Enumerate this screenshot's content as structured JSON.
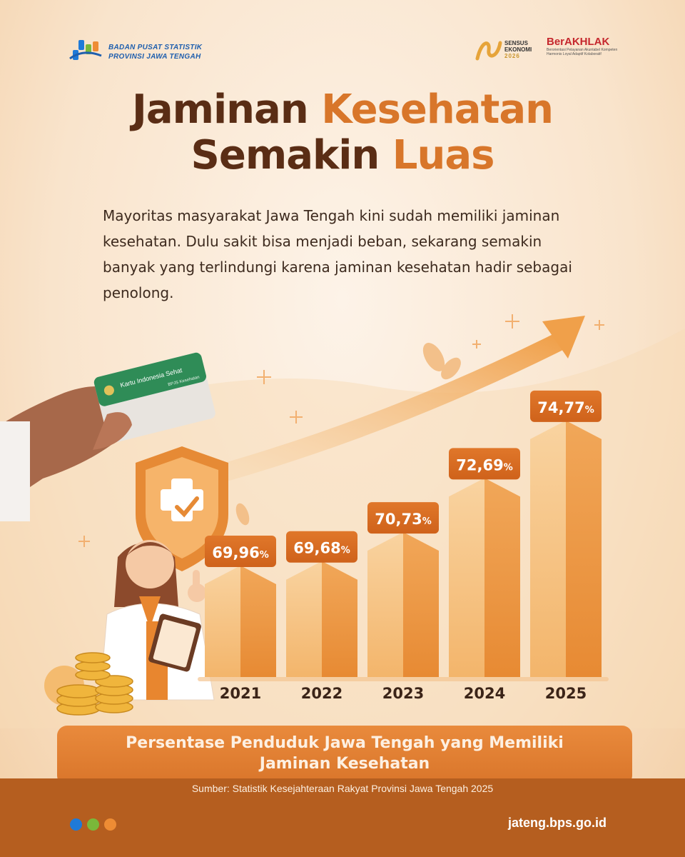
{
  "header": {
    "org_line1": "BADAN PUSAT STATISTIK",
    "org_line2": "PROVINSI JAWA TENGAH",
    "sensus_line1": "SENSUS",
    "sensus_line2": "EKONOMI",
    "sensus_year": "2026",
    "berakhlak": "BerAKHLAK",
    "berakhlak_tag": "Berorientasi Pelayanan Akuntabel Kompeten Harmonis Loyal Adaptif Kolaboratif"
  },
  "title": {
    "line1_a": "Jaminan ",
    "line1_b": "Kesehatan",
    "line2_a": "Semakin ",
    "line2_b": "Luas"
  },
  "intro": "Mayoritas masyarakat Jawa Tengah kini sudah memiliki jaminan kesehatan. Dulu sakit bisa menjadi beban, sekarang semakin banyak yang terlindungi karena jaminan kesehatan hadir sebagai penolong.",
  "card": {
    "label": "Kartu Indonesia Sehat",
    "sub": "BPJS Kesehatan"
  },
  "chart_data": {
    "type": "bar",
    "categories": [
      "2021",
      "2022",
      "2023",
      "2024",
      "2025"
    ],
    "values": [
      69.96,
      69.68,
      70.73,
      72.69,
      74.77
    ],
    "value_labels": [
      "69,96",
      "69,68",
      "70,73",
      "72,69",
      "74,77"
    ],
    "unit": "%",
    "title": "Persentase Penduduk Jawa Tengah yang Memiliki Jaminan Kesehatan",
    "xlabel": "",
    "ylabel": "",
    "grid": false,
    "legend": "none"
  },
  "footer": {
    "caption_line1": "Persentase Penduduk Jawa Tengah yang Memiliki",
    "caption_line2": "Jaminan Kesehatan",
    "source": "Sumber: Statistik Kesejahteraan Rakyat Provinsi Jawa Tengah 2025",
    "site": "jateng.bps.go.id"
  },
  "colors": {
    "brown": "#5a2d15",
    "accent": "#d8762a",
    "bar_light": "#f7c27e",
    "bar_dark": "#e07a22",
    "bar_label": "#d9691e",
    "dot_blue": "#1f7ad8",
    "dot_green": "#7ab83a",
    "dot_orange": "#ee8c34"
  }
}
